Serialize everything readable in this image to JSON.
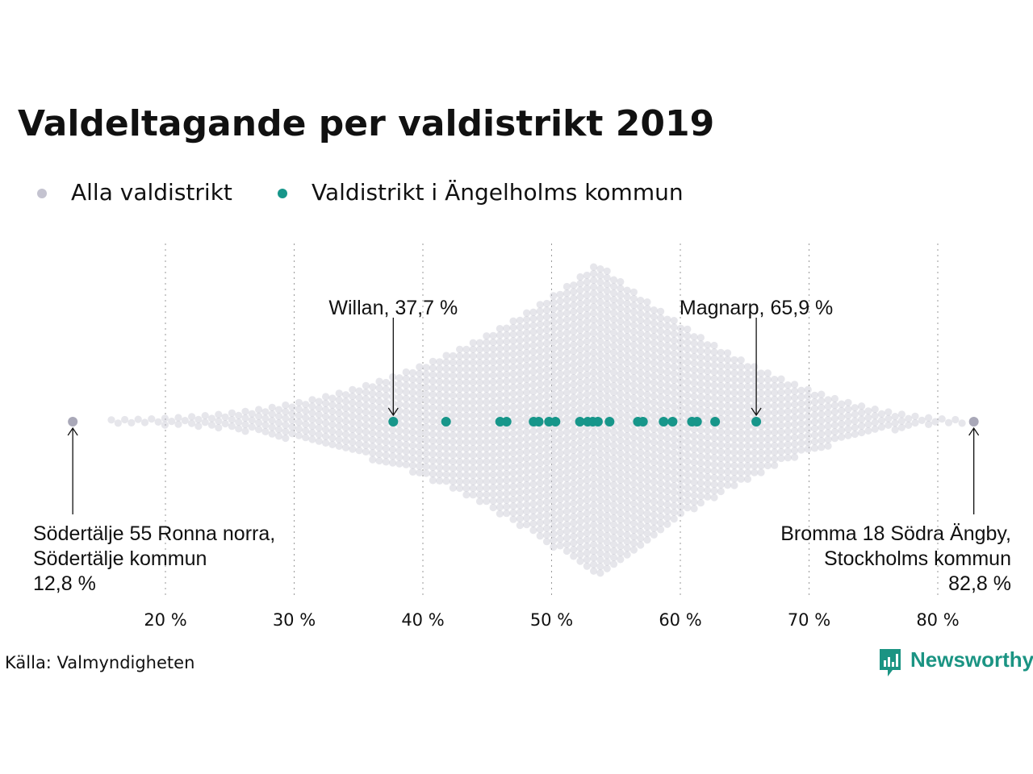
{
  "title": "Valdeltagande per valdistrikt 2019",
  "legend": [
    {
      "label": "Alla valdistrikt",
      "color": "#c4c3d0"
    },
    {
      "label": "Valdistrikt i Ängelholms kommun",
      "color": "#17968a"
    }
  ],
  "chart_data": {
    "type": "scatter",
    "subtype": "beeswarm",
    "x_axis": {
      "ticks": [
        20,
        30,
        40,
        50,
        60,
        70,
        80
      ],
      "tick_labels": [
        "20 %",
        "30 %",
        "40 %",
        "50 %",
        "60 %",
        "70 %",
        "80 %"
      ],
      "range": [
        12,
        83.5
      ],
      "grid": "dotted-vertical"
    },
    "series": [
      {
        "name": "Alla valdistrikt",
        "color": "#c4c3d0",
        "distribution": {
          "min": 12.8,
          "max": 82.8,
          "mode": 53.6
        }
      },
      {
        "name": "Valdistrikt i Ängelholms kommun",
        "color": "#17968a",
        "values": [
          37.7,
          41.8,
          46.0,
          46.5,
          48.6,
          49.0,
          49.8,
          50.3,
          52.2,
          52.8,
          53.2,
          53.6,
          54.5,
          56.7,
          57.1,
          58.7,
          59.4,
          60.9,
          61.3,
          62.7,
          65.9
        ]
      }
    ],
    "annotations": [
      {
        "lines": [
          "Willan, 37,7 %"
        ],
        "value": 37.7,
        "series": "Valdistrikt i Ängelholms kommun",
        "position": "above"
      },
      {
        "lines": [
          "Magnarp, 65,9 %"
        ],
        "value": 65.9,
        "series": "Valdistrikt i Ängelholms kommun",
        "position": "above"
      },
      {
        "lines": [
          "Södertälje 55 Ronna norra,",
          "Södertälje kommun",
          "12,8 %"
        ],
        "value": 12.8,
        "series": "Alla valdistrikt",
        "position": "below-left"
      },
      {
        "lines": [
          "Bromma 18 Södra Ängby,",
          "Stockholms kommun",
          "82,8 %"
        ],
        "value": 82.8,
        "series": "Alla valdistrikt",
        "position": "below-right"
      }
    ]
  },
  "source": "Källa: Valmyndigheten",
  "brand": {
    "name": "Newsworthy",
    "color": "#1b9483"
  }
}
